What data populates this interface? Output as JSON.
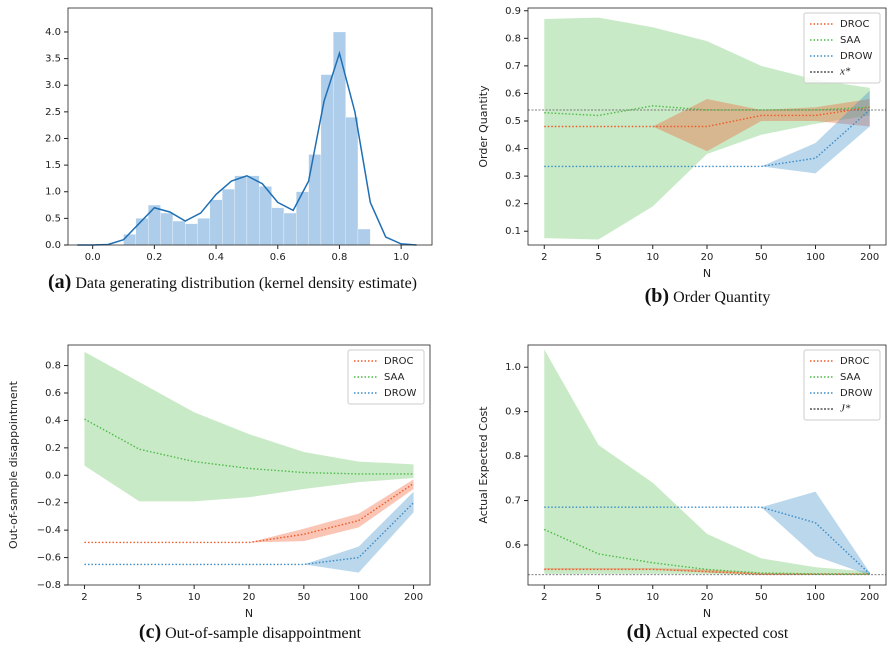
{
  "chart_data": [
    {
      "type": "histogram",
      "caption_label": "(a)",
      "caption": "Data generating distribution (kernel density estimate)",
      "bins": [
        0.1,
        0.14,
        0.18,
        0.22,
        0.26,
        0.3,
        0.34,
        0.38,
        0.42,
        0.46,
        0.5,
        0.54,
        0.58,
        0.62,
        0.66,
        0.7,
        0.74,
        0.78,
        0.82,
        0.86,
        0.9
      ],
      "counts": [
        0.2,
        0.5,
        0.75,
        0.6,
        0.45,
        0.4,
        0.5,
        0.85,
        1.05,
        1.3,
        1.3,
        1.1,
        0.7,
        0.6,
        1.0,
        1.7,
        3.2,
        4.0,
        2.4,
        0.3
      ],
      "color": "#5b9bd5",
      "line": {
        "x": [
          -0.05,
          0,
          0.05,
          0.1,
          0.15,
          0.2,
          0.25,
          0.3,
          0.35,
          0.4,
          0.45,
          0.5,
          0.55,
          0.6,
          0.65,
          0.7,
          0.75,
          0.8,
          0.85,
          0.9,
          0.95,
          1.0,
          1.05
        ],
        "values": [
          0,
          0,
          0.01,
          0.1,
          0.4,
          0.7,
          0.62,
          0.45,
          0.6,
          0.95,
          1.2,
          1.3,
          1.15,
          0.8,
          0.65,
          1.2,
          2.7,
          3.6,
          2.5,
          0.8,
          0.15,
          0.02,
          0
        ],
        "color": "#1f6fb4"
      },
      "xlim": [
        -0.08,
        1.1
      ],
      "xticks": [
        {
          "value": 0.0,
          "label": "0.0"
        },
        0.2,
        0.4,
        0.6,
        0.8,
        {
          "value": 1.0,
          "label": "1.0"
        }
      ],
      "ylim": [
        0,
        4.45
      ],
      "yticks": [
        {
          "value": 0.0,
          "label": "0.0"
        },
        0.5,
        {
          "value": 1.0,
          "label": "1.0"
        },
        1.5,
        {
          "value": 2.0,
          "label": "2.0"
        },
        2.5,
        {
          "value": 3.0,
          "label": "3.0"
        },
        3.5,
        {
          "value": 4.0,
          "label": "4.0"
        }
      ]
    },
    {
      "type": "line",
      "caption_label": "(b)",
      "caption": "Order Quantity",
      "xlabel": "N",
      "ylabel": "Order Quantity",
      "categories": [
        "2",
        "5",
        "10",
        "20",
        "50",
        "100",
        "200"
      ],
      "series": [
        {
          "name": "DROC",
          "color": "#f05a28",
          "values": [
            0.48,
            0.48,
            0.48,
            0.48,
            0.52,
            0.52,
            0.55
          ],
          "lower": [
            0.48,
            0.48,
            0.48,
            0.39,
            0.5,
            0.5,
            0.48
          ],
          "upper": [
            0.48,
            0.48,
            0.48,
            0.58,
            0.54,
            0.55,
            0.58
          ]
        },
        {
          "name": "SAA",
          "color": "#4cbb47",
          "values": [
            0.53,
            0.52,
            0.555,
            0.54,
            0.54,
            0.54,
            0.55
          ],
          "lower": [
            0.075,
            0.07,
            0.19,
            0.38,
            0.45,
            0.49,
            0.52
          ],
          "upper": [
            0.87,
            0.875,
            0.84,
            0.79,
            0.7,
            0.65,
            0.62
          ]
        },
        {
          "name": "DROW",
          "color": "#3a8cc8",
          "values": [
            0.335,
            0.335,
            0.335,
            0.335,
            0.335,
            0.365,
            0.54
          ],
          "lower": [
            0.335,
            0.335,
            0.335,
            0.335,
            0.335,
            0.31,
            0.48
          ],
          "upper": [
            0.335,
            0.335,
            0.335,
            0.335,
            0.335,
            0.42,
            0.61
          ]
        }
      ],
      "reference": {
        "name": "x*",
        "value": 0.54,
        "color": "#555555"
      },
      "ylim": [
        0.05,
        0.91
      ],
      "yticks": [
        0.1,
        0.2,
        0.3,
        0.4,
        0.5,
        0.6,
        0.7,
        0.8,
        0.9
      ],
      "legend": "upper right"
    },
    {
      "type": "line",
      "caption_label": "(c)",
      "caption": "Out-of-sample disappointment",
      "xlabel": "N",
      "ylabel": "Out-of-sample disappointment",
      "categories": [
        "2",
        "5",
        "10",
        "20",
        "50",
        "100",
        "200"
      ],
      "series": [
        {
          "name": "DROC",
          "color": "#f05a28",
          "values": [
            -0.49,
            -0.49,
            -0.49,
            -0.49,
            -0.43,
            -0.33,
            -0.06
          ],
          "lower": [
            -0.49,
            -0.49,
            -0.49,
            -0.49,
            -0.48,
            -0.38,
            -0.1
          ],
          "upper": [
            -0.49,
            -0.49,
            -0.49,
            -0.49,
            -0.39,
            -0.28,
            -0.03
          ]
        },
        {
          "name": "SAA",
          "color": "#4cbb47",
          "values": [
            0.41,
            0.19,
            0.1,
            0.05,
            0.02,
            0.01,
            0.01
          ],
          "lower": [
            0.07,
            -0.19,
            -0.19,
            -0.16,
            -0.1,
            -0.05,
            -0.02
          ],
          "upper": [
            0.9,
            0.68,
            0.46,
            0.3,
            0.17,
            0.1,
            0.08
          ]
        },
        {
          "name": "DROW",
          "color": "#3a8cc8",
          "values": [
            -0.65,
            -0.65,
            -0.65,
            -0.65,
            -0.65,
            -0.6,
            -0.2
          ],
          "lower": [
            -0.65,
            -0.65,
            -0.65,
            -0.65,
            -0.65,
            -0.71,
            -0.27
          ],
          "upper": [
            -0.65,
            -0.65,
            -0.65,
            -0.65,
            -0.65,
            -0.52,
            -0.12
          ]
        }
      ],
      "ylim": [
        -0.8,
        0.95
      ],
      "yticks": [
        {
          "value": -0.8,
          "label": "−0.8"
        },
        {
          "value": -0.6,
          "label": "−0.6"
        },
        {
          "value": -0.4,
          "label": "−0.4"
        },
        {
          "value": -0.2,
          "label": "−0.2"
        },
        {
          "value": 0.0,
          "label": "0.0"
        },
        0.2,
        0.4,
        0.6,
        0.8
      ],
      "legend": "upper right"
    },
    {
      "type": "line",
      "caption_label": "(d)",
      "caption": "Actual expected cost",
      "xlabel": "N",
      "ylabel": "Actual Expected Cost",
      "categories": [
        "2",
        "5",
        "10",
        "20",
        "50",
        "100",
        "200"
      ],
      "series": [
        {
          "name": "DROC",
          "color": "#f05a28",
          "values": [
            0.545,
            0.545,
            0.545,
            0.54,
            0.535,
            0.535,
            0.535
          ],
          "lower": [
            0.545,
            0.545,
            0.545,
            0.538,
            0.533,
            0.533,
            0.533
          ],
          "upper": [
            0.548,
            0.548,
            0.548,
            0.545,
            0.537,
            0.536,
            0.536
          ]
        },
        {
          "name": "SAA",
          "color": "#4cbb47",
          "values": [
            0.635,
            0.58,
            0.56,
            0.545,
            0.537,
            0.535,
            0.534
          ],
          "lower": [
            0.535,
            0.535,
            0.535,
            0.535,
            0.533,
            0.533,
            0.533
          ],
          "upper": [
            1.04,
            0.825,
            0.74,
            0.625,
            0.57,
            0.55,
            0.54
          ]
        },
        {
          "name": "DROW",
          "color": "#3a8cc8",
          "values": [
            0.685,
            0.685,
            0.685,
            0.685,
            0.685,
            0.65,
            0.535
          ],
          "lower": [
            0.685,
            0.685,
            0.685,
            0.685,
            0.685,
            0.575,
            0.532
          ],
          "upper": [
            0.685,
            0.685,
            0.685,
            0.685,
            0.685,
            0.72,
            0.538
          ]
        }
      ],
      "reference": {
        "name": "J*",
        "value": 0.533,
        "color": "#555555"
      },
      "ylim": [
        0.51,
        1.05
      ],
      "yticks": [
        0.6,
        0.7,
        0.8,
        0.9,
        {
          "value": 1.0,
          "label": "1.0"
        }
      ],
      "legend": "upper right"
    }
  ]
}
